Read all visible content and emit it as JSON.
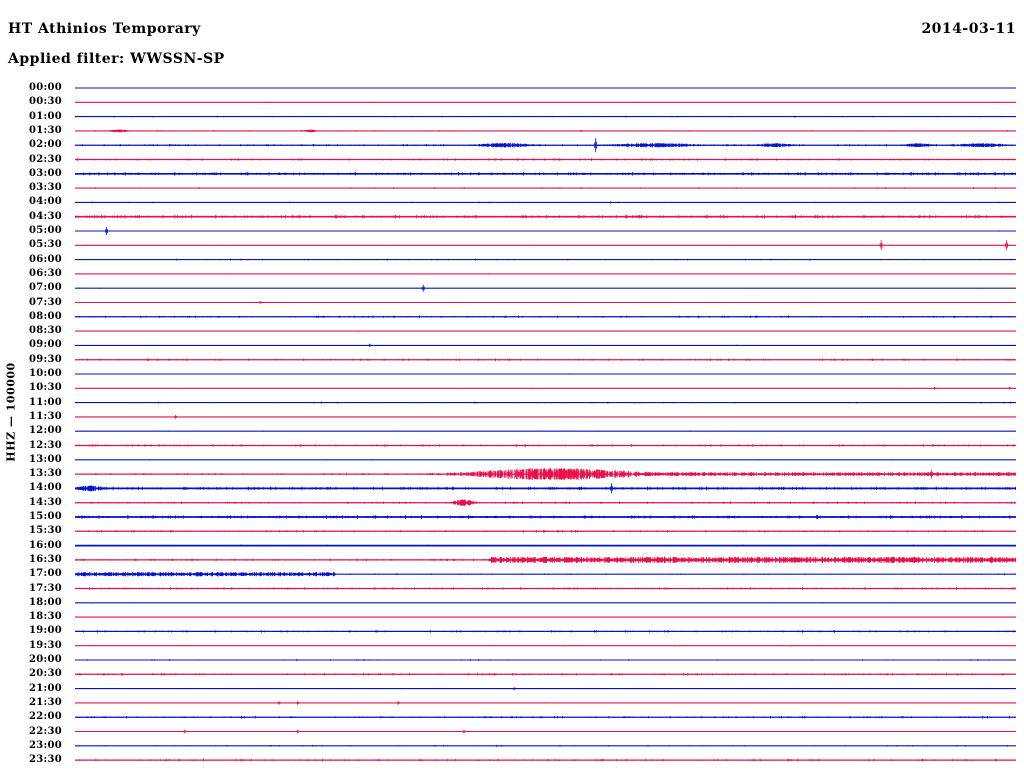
{
  "header": {
    "title": "HT Athinios Temporary",
    "filter_label": "Applied filter: WWSSN-SP",
    "date": "2014-03-11"
  },
  "y_axis_label": "HHZ — 100000",
  "colors": {
    "blue": "#0013cd",
    "red": "#e8114b"
  },
  "chart_data": {
    "type": "line",
    "subtype": "helicorder-seismogram",
    "title": "HT Athinios Temporary",
    "filter": "WWSSN-SP",
    "date": "2014-03-11",
    "ylabel": "HHZ — 100000",
    "row_duration_minutes": 30,
    "first_row_time": "00:00",
    "last_row_time": "23:30",
    "legend": "traces alternate blue (:00) and red (:30); event times t are minutes into each 30-minute row",
    "rows": [
      {
        "time": "00:00",
        "color": "blue",
        "activity": "quiet"
      },
      {
        "time": "00:30",
        "color": "red",
        "activity": "quiet"
      },
      {
        "time": "01:00",
        "color": "blue",
        "activity": "low"
      },
      {
        "time": "01:30",
        "color": "red",
        "activity": "low",
        "events": [
          {
            "type": "burst",
            "t": 1.4,
            "w": 0.7,
            "amp": 1.6
          },
          {
            "type": "burst",
            "t": 7.5,
            "w": 0.5,
            "amp": 1.4
          }
        ]
      },
      {
        "time": "02:00",
        "color": "blue",
        "activity": "medium",
        "events": [
          {
            "type": "burst",
            "t": 13.7,
            "w": 1.9,
            "amp": 2.4
          },
          {
            "type": "spike",
            "t": 16.6,
            "amp": 7
          },
          {
            "type": "burst",
            "t": 18.5,
            "w": 3.2,
            "amp": 2.2
          },
          {
            "type": "burst",
            "t": 22.3,
            "w": 1.3,
            "amp": 2
          },
          {
            "type": "burst",
            "t": 26.9,
            "w": 1.0,
            "amp": 2
          },
          {
            "type": "burst",
            "t": 28.9,
            "w": 1.9,
            "amp": 2
          }
        ]
      },
      {
        "time": "02:30",
        "color": "red",
        "activity": "medium"
      },
      {
        "time": "03:00",
        "color": "blue",
        "activity": "high"
      },
      {
        "time": "03:30",
        "color": "red",
        "activity": "low"
      },
      {
        "time": "04:00",
        "color": "blue",
        "activity": "low"
      },
      {
        "time": "04:30",
        "color": "red",
        "activity": "high"
      },
      {
        "time": "05:00",
        "color": "blue",
        "activity": "quiet",
        "events": [
          {
            "type": "spike",
            "t": 1.0,
            "amp": 4
          }
        ]
      },
      {
        "time": "05:30",
        "color": "red",
        "activity": "quiet",
        "events": [
          {
            "type": "spike",
            "t": 25.7,
            "amp": 5
          },
          {
            "type": "spike",
            "t": 29.7,
            "amp": 5
          }
        ]
      },
      {
        "time": "06:00",
        "color": "blue",
        "activity": "low"
      },
      {
        "time": "06:30",
        "color": "red",
        "activity": "quiet"
      },
      {
        "time": "07:00",
        "color": "blue",
        "activity": "quiet",
        "events": [
          {
            "type": "spike",
            "t": 11.1,
            "amp": 3.5
          }
        ]
      },
      {
        "time": "07:30",
        "color": "red",
        "activity": "quiet",
        "events": [
          {
            "type": "spike",
            "t": 5.9,
            "amp": 1.6
          }
        ]
      },
      {
        "time": "08:00",
        "color": "blue",
        "activity": "medium"
      },
      {
        "time": "08:30",
        "color": "red",
        "activity": "quiet"
      },
      {
        "time": "09:00",
        "color": "blue",
        "activity": "quiet",
        "events": [
          {
            "type": "spike",
            "t": 9.4,
            "amp": 1.6
          }
        ]
      },
      {
        "time": "09:30",
        "color": "red",
        "activity": "medium"
      },
      {
        "time": "10:00",
        "color": "blue",
        "activity": "quiet"
      },
      {
        "time": "10:30",
        "color": "red",
        "activity": "quiet",
        "events": [
          {
            "type": "spike",
            "t": 27.4,
            "amp": 1.5
          },
          {
            "type": "spike",
            "t": 29.8,
            "amp": 1.5
          }
        ]
      },
      {
        "time": "11:00",
        "color": "blue",
        "activity": "low"
      },
      {
        "time": "11:30",
        "color": "red",
        "activity": "quiet",
        "events": [
          {
            "type": "spike",
            "t": 3.2,
            "amp": 2
          }
        ]
      },
      {
        "time": "12:00",
        "color": "blue",
        "activity": "quiet"
      },
      {
        "time": "12:30",
        "color": "red",
        "activity": "medium"
      },
      {
        "time": "13:00",
        "color": "blue",
        "activity": "quiet"
      },
      {
        "time": "13:30",
        "color": "red",
        "activity": "medium",
        "events": [
          {
            "type": "burst",
            "t": 15.3,
            "w": 5.7,
            "amp": 6
          },
          {
            "type": "band",
            "t": 17.9,
            "t1": 30,
            "amp": 2
          },
          {
            "type": "spike",
            "t": 27.3,
            "amp": 4.5
          }
        ]
      },
      {
        "time": "14:00",
        "color": "blue",
        "activity": "high",
        "events": [
          {
            "type": "burst",
            "t": 0.5,
            "w": 1.0,
            "amp": 3
          },
          {
            "type": "spike",
            "t": 17.1,
            "amp": 5
          }
        ]
      },
      {
        "time": "14:30",
        "color": "red",
        "activity": "medium",
        "events": [
          {
            "type": "burst",
            "t": 12.4,
            "w": 0.8,
            "amp": 3.5
          }
        ]
      },
      {
        "time": "15:00",
        "color": "blue",
        "activity": "high"
      },
      {
        "time": "15:30",
        "color": "red",
        "activity": "medium"
      },
      {
        "time": "16:00",
        "color": "blue",
        "activity": "low",
        "thick": true
      },
      {
        "time": "16:30",
        "color": "red",
        "activity": "medium",
        "events": [
          {
            "type": "band",
            "t": 13.2,
            "t1": 30,
            "amp": 3.2
          }
        ]
      },
      {
        "time": "17:00",
        "color": "blue",
        "activity": "low",
        "events": [
          {
            "type": "band",
            "t": 0,
            "t1": 8.3,
            "amp": 2.2
          }
        ]
      },
      {
        "time": "17:30",
        "color": "red",
        "activity": "medium"
      },
      {
        "time": "18:00",
        "color": "blue",
        "activity": "quiet"
      },
      {
        "time": "18:30",
        "color": "red",
        "activity": "quiet"
      },
      {
        "time": "19:00",
        "color": "blue",
        "activity": "medium"
      },
      {
        "time": "19:30",
        "color": "red",
        "activity": "quiet"
      },
      {
        "time": "20:00",
        "color": "blue",
        "activity": "low"
      },
      {
        "time": "20:30",
        "color": "red",
        "activity": "medium"
      },
      {
        "time": "21:00",
        "color": "blue",
        "activity": "quiet",
        "events": [
          {
            "type": "spike",
            "t": 14.0,
            "amp": 1.5
          }
        ]
      },
      {
        "time": "21:30",
        "color": "red",
        "activity": "quiet",
        "events": [
          {
            "type": "spike",
            "t": 6.5,
            "amp": 2
          },
          {
            "type": "spike",
            "t": 7.1,
            "amp": 2
          },
          {
            "type": "spike",
            "t": 10.3,
            "amp": 2
          }
        ]
      },
      {
        "time": "22:00",
        "color": "blue",
        "activity": "medium"
      },
      {
        "time": "22:30",
        "color": "red",
        "activity": "quiet",
        "events": [
          {
            "type": "spike",
            "t": 3.5,
            "amp": 2
          },
          {
            "type": "spike",
            "t": 7.1,
            "amp": 2
          },
          {
            "type": "spike",
            "t": 12.4,
            "amp": 2
          }
        ]
      },
      {
        "time": "23:00",
        "color": "blue",
        "activity": "low"
      },
      {
        "time": "23:30",
        "color": "red",
        "activity": "medium"
      }
    ]
  }
}
